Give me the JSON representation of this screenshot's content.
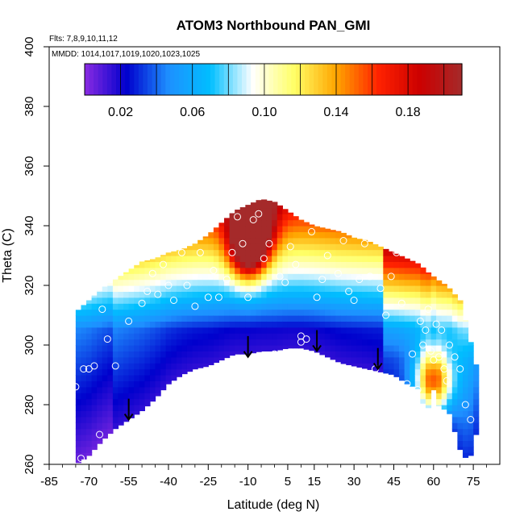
{
  "chart_data": {
    "type": "heatmap",
    "title": "ATOM3 Northbound PAN_GMI",
    "notes": [
      "Flts: 7,8,9,10,11,12",
      "MMDD: 1014,1017,1019,1020,1023,1025"
    ],
    "xlabel": "Latitude (deg N)",
    "ylabel": "Theta (C)",
    "xlim": [
      -85,
      85
    ],
    "ylim": [
      260,
      400
    ],
    "x_ticks": [
      -85,
      -70,
      -55,
      -40,
      -25,
      -10,
      5,
      15,
      30,
      45,
      60,
      75
    ],
    "y_ticks": [
      260,
      280,
      300,
      320,
      340,
      360,
      380,
      400
    ],
    "colorbar": {
      "range": [
        0.0,
        0.21
      ],
      "tick_values": [
        0.02,
        0.06,
        0.1,
        0.14,
        0.18
      ],
      "tick_labels": [
        "0.02",
        "0.06",
        "0.10",
        "0.14",
        "0.18"
      ],
      "placement": "top-inside",
      "colors": [
        "#8a2be2",
        "#0000cd",
        "#1e90ff",
        "#00bfff",
        "#ffffff",
        "#ffff66",
        "#ffa500",
        "#ff2200",
        "#cc0000",
        "#a52a2a"
      ]
    },
    "field_envelope": {
      "lat": [
        -75,
        -70,
        -65,
        -60,
        -55,
        -50,
        -45,
        -40,
        -35,
        -30,
        -25,
        -20,
        -15,
        -10,
        -5,
        0,
        5,
        10,
        15,
        20,
        25,
        30,
        35,
        40,
        45,
        50,
        55,
        57,
        60,
        63,
        65,
        70,
        73,
        75,
        77
      ],
      "theta_top": [
        311,
        315,
        319,
        322,
        325,
        328,
        329,
        331,
        332,
        334,
        337,
        341,
        345,
        347,
        349,
        348,
        345,
        342,
        340,
        339,
        338,
        336,
        335,
        333,
        331,
        329,
        327,
        325,
        323,
        321,
        320,
        315,
        305,
        297,
        290
      ],
      "theta_bottom": [
        260,
        263,
        268,
        272,
        275,
        278,
        282,
        287,
        290,
        292,
        293,
        295,
        297,
        297,
        298,
        298,
        299,
        299,
        298,
        296,
        294,
        293,
        292,
        291,
        290,
        287,
        285,
        276,
        285,
        277,
        280,
        265,
        261,
        265,
        275
      ]
    },
    "hotspots": [
      {
        "lat": -10,
        "theta": 333,
        "value": 0.18
      },
      {
        "lat": -8,
        "theta": 342,
        "value": 0.19
      },
      {
        "lat": 60,
        "theta": 288,
        "value": 0.18
      }
    ],
    "observations": [
      [
        -78,
        311
      ],
      [
        -77,
        296
      ],
      [
        -75,
        286
      ],
      [
        -72,
        292
      ],
      [
        -70,
        292
      ],
      [
        -68,
        293
      ],
      [
        -65,
        312
      ],
      [
        -63,
        302
      ],
      [
        -60,
        293
      ],
      [
        -55,
        308
      ],
      [
        -50,
        314
      ],
      [
        -48,
        318
      ],
      [
        -46,
        324
      ],
      [
        -44,
        317
      ],
      [
        -42,
        327
      ],
      [
        -40,
        320
      ],
      [
        -38,
        315
      ],
      [
        -35,
        331
      ],
      [
        -33,
        320
      ],
      [
        -30,
        313
      ],
      [
        -28,
        331
      ],
      [
        -25,
        316
      ],
      [
        -23,
        325
      ],
      [
        -21,
        316
      ],
      [
        -18,
        322
      ],
      [
        -16,
        331
      ],
      [
        -14,
        343
      ],
      [
        -12,
        334
      ],
      [
        -10,
        316
      ],
      [
        -8,
        342
      ],
      [
        -6,
        344
      ],
      [
        -4,
        329
      ],
      [
        -2,
        334
      ],
      [
        0,
        297
      ],
      [
        2,
        323
      ],
      [
        4,
        321
      ],
      [
        6,
        333
      ],
      [
        8,
        327
      ],
      [
        10,
        301
      ],
      [
        10,
        303
      ],
      [
        12,
        302
      ],
      [
        14,
        338
      ],
      [
        16,
        316
      ],
      [
        18,
        322
      ],
      [
        20,
        330
      ],
      [
        22,
        342
      ],
      [
        24,
        324
      ],
      [
        26,
        335
      ],
      [
        28,
        318
      ],
      [
        30,
        315
      ],
      [
        32,
        322
      ],
      [
        34,
        334
      ],
      [
        36,
        323
      ],
      [
        38,
        292
      ],
      [
        40,
        319
      ],
      [
        42,
        310
      ],
      [
        44,
        323
      ],
      [
        46,
        331
      ],
      [
        48,
        314
      ],
      [
        50,
        287
      ],
      [
        52,
        297
      ],
      [
        54,
        285
      ],
      [
        55,
        308
      ],
      [
        56,
        300
      ],
      [
        57,
        305
      ],
      [
        58,
        312
      ],
      [
        59,
        298
      ],
      [
        60,
        295
      ],
      [
        61,
        307
      ],
      [
        62,
        296
      ],
      [
        63,
        305
      ],
      [
        64,
        292
      ],
      [
        65,
        288
      ],
      [
        66,
        300
      ],
      [
        68,
        296
      ],
      [
        70,
        292
      ],
      [
        72,
        280
      ],
      [
        74,
        275
      ],
      [
        -73,
        262
      ],
      [
        -66,
        270
      ]
    ],
    "arrows": [
      {
        "lat": -55,
        "theta_from": 282,
        "theta_to": 275
      },
      {
        "lat": -10,
        "theta_from": 303,
        "theta_to": 296
      },
      {
        "lat": 16,
        "theta_from": 305,
        "theta_to": 298
      },
      {
        "lat": 39,
        "theta_from": 299,
        "theta_to": 292
      }
    ]
  }
}
